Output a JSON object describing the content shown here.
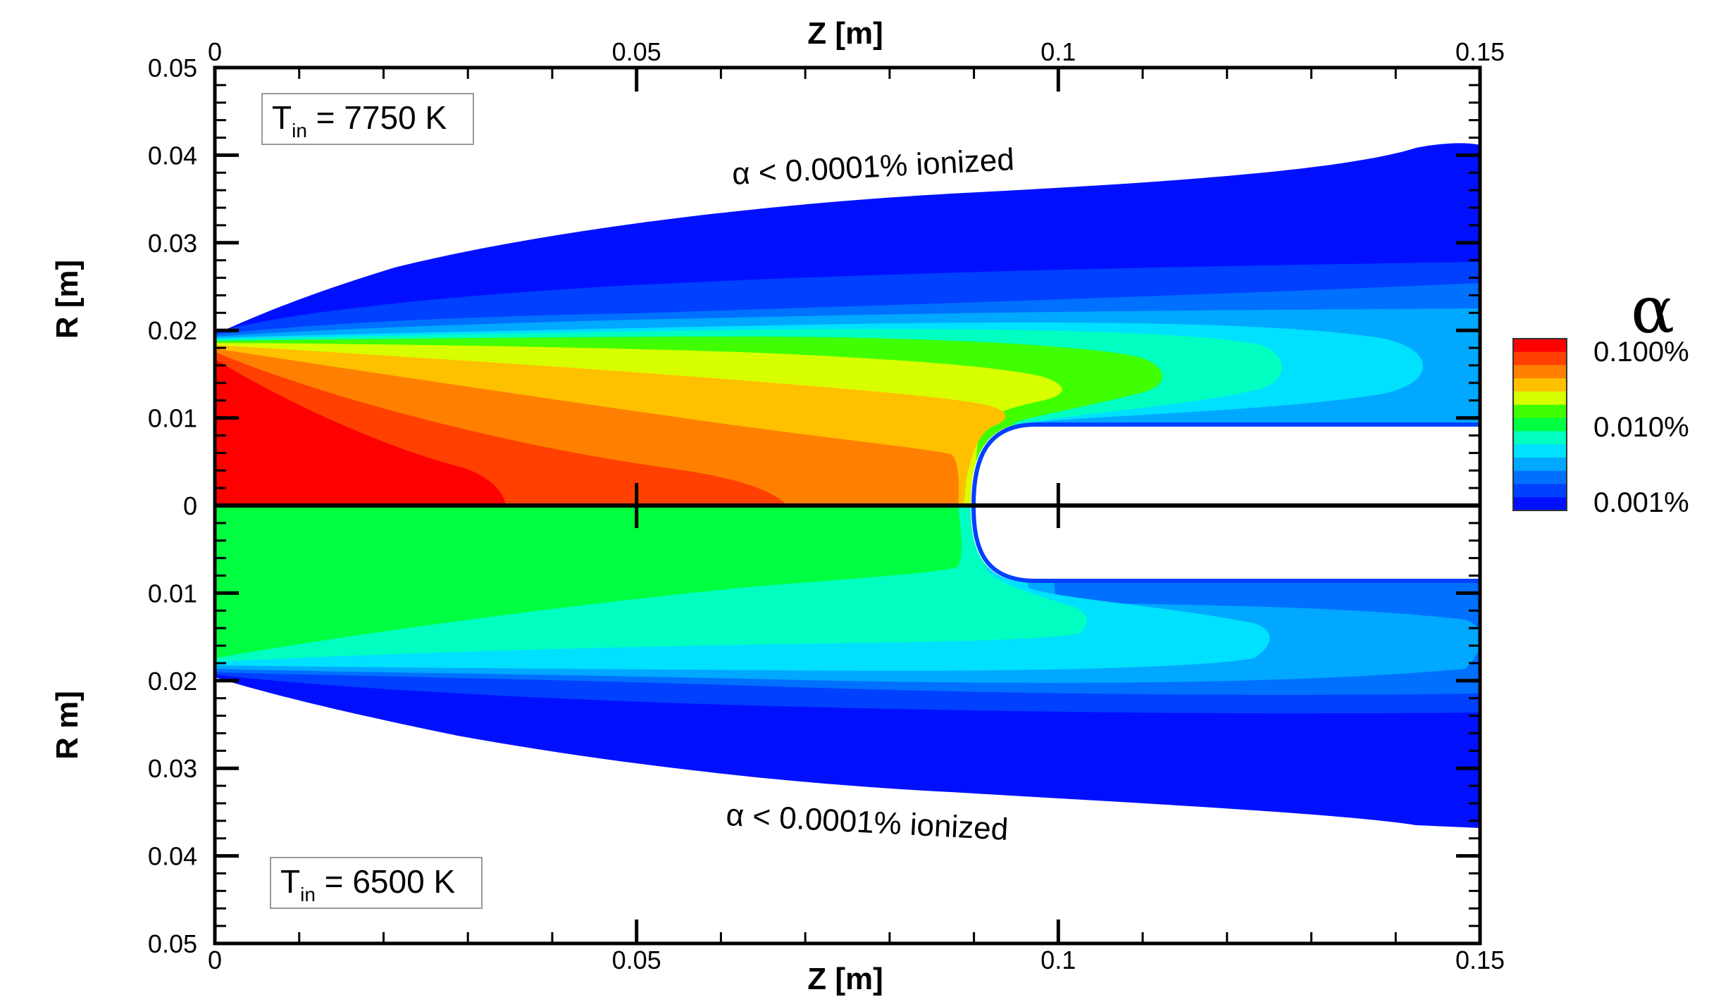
{
  "chart_data": {
    "type": "contour",
    "xlabel": "Z [m]",
    "x_ticks": [
      "0",
      "0.05",
      "0.1",
      "0.15"
    ],
    "xlim": [
      0,
      0.15
    ],
    "panels": [
      {
        "name": "top",
        "ylabel": "R [m]",
        "y_ticks": [
          "0.05",
          "0.04",
          "0.03",
          "0.02",
          "0.01",
          "0"
        ],
        "ylim": [
          0,
          0.05
        ],
        "condition": {
          "T": "T",
          "sub": "in",
          "rest": " = 7750 K"
        },
        "annotation": "α < 0.0001% ionized",
        "envelope_radius_m": {
          "z": [
            0,
            0.02,
            0.05,
            0.09,
            0.12,
            0.145,
            0.15
          ],
          "r": [
            0.0195,
            0.026,
            0.032,
            0.0355,
            0.038,
            0.041,
            0.041
          ]
        }
      },
      {
        "name": "bottom",
        "ylabel": "R m]",
        "y_ticks": [
          "0.01",
          "0.02",
          "0.03",
          "0.04",
          "0.05"
        ],
        "ylim": [
          0,
          0.05
        ],
        "condition": {
          "T": "T",
          "sub": "in",
          "rest": " = 6500 K"
        },
        "annotation": "α < 0.0001% ionized",
        "envelope_radius_m": {
          "z": [
            0,
            0.02,
            0.05,
            0.09,
            0.12,
            0.145,
            0.15
          ],
          "r": [
            0.0195,
            0.023,
            0.028,
            0.033,
            0.0355,
            0.037,
            0.037
          ]
        }
      }
    ],
    "probe": {
      "tip_z_m": 0.089,
      "radius_m": 0.0095
    },
    "colorbar": {
      "title": "α",
      "labels": [
        "0.100%",
        "0.010%",
        "0.001%"
      ],
      "colors": [
        "#ff0000",
        "#ff4000",
        "#ff8000",
        "#ffc000",
        "#d8ff00",
        "#40ff00",
        "#00ff40",
        "#00ffc0",
        "#00e0ff",
        "#00a8ff",
        "#0070ff",
        "#0040ff",
        "#0010ff"
      ]
    }
  }
}
